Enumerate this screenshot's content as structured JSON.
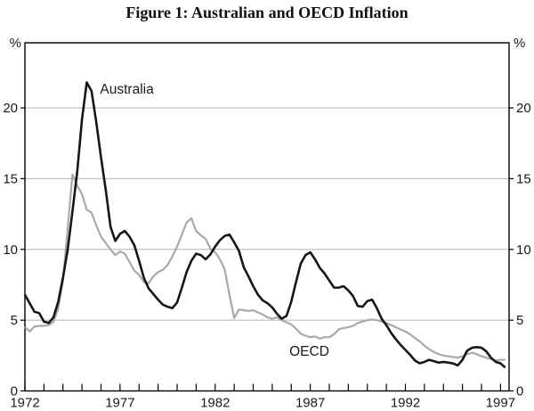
{
  "title": "Figure 1: Australian and OECD Inflation",
  "y_axis": {
    "unit_left": "%",
    "unit_right": "%",
    "ticks": [
      0,
      5,
      10,
      15,
      20
    ]
  },
  "x_axis": {
    "labeled_years": [
      1972,
      1977,
      1982,
      1987,
      1992,
      1997
    ],
    "minor_tick_step_years": 1
  },
  "colors": {
    "australia_line": "#161616",
    "oecd_line": "#a9a9a9",
    "gridline": "#b3b3b3",
    "frame": "#000000"
  },
  "chart_data": {
    "type": "line",
    "title": "Figure 1: Australian and OECD Inflation",
    "ylabel": "%",
    "xlim": [
      1972,
      1997.45
    ],
    "ylim": [
      0,
      24.6
    ],
    "gridlines": [
      5,
      10,
      15,
      20
    ],
    "grid": "horizontal-only",
    "legend_position": "inline-annotations",
    "x_start": 1972.0,
    "x_step": 0.25,
    "series": [
      {
        "name": "Australia",
        "color": "#161616",
        "width": 2.6,
        "values": [
          6.8,
          6.2,
          5.6,
          5.5,
          4.9,
          4.8,
          5.2,
          6.3,
          8.0,
          10.0,
          12.7,
          15.5,
          19.2,
          21.8,
          21.2,
          19.0,
          16.5,
          14.2,
          11.6,
          10.6,
          11.1,
          11.3,
          10.9,
          10.3,
          9.2,
          8.0,
          7.25,
          6.85,
          6.45,
          6.1,
          5.95,
          5.85,
          6.25,
          7.3,
          8.4,
          9.2,
          9.7,
          9.6,
          9.3,
          9.65,
          10.2,
          10.65,
          10.95,
          11.05,
          10.5,
          9.9,
          8.75,
          8.1,
          7.4,
          6.8,
          6.4,
          6.2,
          5.9,
          5.45,
          5.1,
          5.3,
          6.3,
          7.7,
          9.0,
          9.6,
          9.8,
          9.3,
          8.7,
          8.3,
          7.8,
          7.3,
          7.3,
          7.4,
          7.1,
          6.7,
          6.0,
          5.95,
          6.35,
          6.45,
          5.85,
          5.1,
          4.65,
          4.1,
          3.65,
          3.25,
          2.9,
          2.55,
          2.15,
          1.95,
          2.05,
          2.2,
          2.1,
          2.0,
          2.05,
          2.0,
          1.95,
          1.8,
          2.2,
          2.85,
          3.05,
          3.1,
          3.05,
          2.8,
          2.35,
          2.05,
          1.95,
          1.65
        ]
      },
      {
        "name": "OECD",
        "color": "#a9a9a9",
        "width": 2.2,
        "values": [
          4.5,
          4.2,
          4.55,
          4.6,
          4.6,
          4.65,
          4.9,
          5.8,
          7.8,
          11.5,
          15.3,
          14.5,
          13.9,
          12.8,
          12.6,
          11.7,
          10.9,
          10.45,
          10.0,
          9.6,
          9.85,
          9.7,
          9.1,
          8.5,
          8.2,
          7.7,
          7.6,
          8.1,
          8.4,
          8.55,
          8.9,
          9.5,
          10.2,
          11.05,
          11.9,
          12.2,
          11.3,
          11.0,
          10.75,
          10.05,
          9.8,
          9.3,
          8.6,
          6.8,
          5.15,
          5.75,
          5.7,
          5.65,
          5.7,
          5.55,
          5.4,
          5.2,
          5.1,
          5.2,
          5.0,
          4.85,
          4.7,
          4.4,
          4.05,
          3.9,
          3.8,
          3.85,
          3.7,
          3.8,
          3.8,
          4.0,
          4.35,
          4.45,
          4.5,
          4.6,
          4.8,
          4.9,
          5.0,
          5.05,
          5.0,
          4.9,
          4.8,
          4.65,
          4.5,
          4.35,
          4.2,
          4.0,
          3.75,
          3.5,
          3.2,
          2.95,
          2.75,
          2.6,
          2.5,
          2.45,
          2.4,
          2.35,
          2.45,
          2.6,
          2.7,
          2.6,
          2.45,
          2.35,
          2.25,
          2.15,
          2.2,
          2.2
        ]
      }
    ],
    "annotations": [
      {
        "text": "Australia",
        "x": 1975.95,
        "y": 21.0,
        "anchor": "start",
        "font_size": 15.5
      },
      {
        "text": "OECD",
        "x": 1985.9,
        "y": 2.5,
        "anchor": "start",
        "font_size": 15.5
      }
    ]
  }
}
